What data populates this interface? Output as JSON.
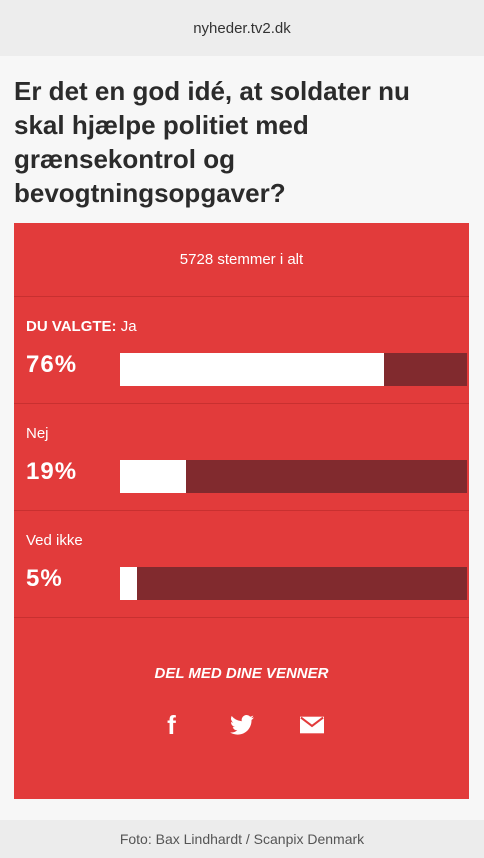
{
  "browser": {
    "url": "nyheder.tv2.dk"
  },
  "article": {
    "question": "Er det en god idé, at soldater nu skal hjælpe politiet med grænsekontrol og bevogtningsopgaver?"
  },
  "poll": {
    "total_votes": "5728 stemmer i alt",
    "options": [
      {
        "prefix": "DU VALGTE:",
        "label": "Ja",
        "percent_text": "76%",
        "percent": 76,
        "selected": true
      },
      {
        "prefix": "",
        "label": "Nej",
        "percent_text": "19%",
        "percent": 19,
        "selected": false
      },
      {
        "prefix": "",
        "label": "Ved ikke",
        "percent_text": "5%",
        "percent": 5,
        "selected": false
      }
    ],
    "share_label": "DEL MED DINE VENNER",
    "share_icons": [
      "facebook-icon",
      "twitter-icon",
      "mail-icon"
    ]
  },
  "photo_credit": "Foto: Bax Lindhardt / Scanpix Denmark",
  "colors": {
    "poll_bg": "#e23b3b",
    "bar_track": "#812a2e",
    "bar_fill": "#ffffff"
  }
}
